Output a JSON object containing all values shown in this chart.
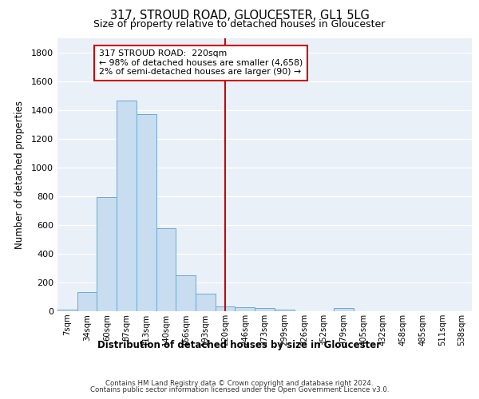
{
  "title": "317, STROUD ROAD, GLOUCESTER, GL1 5LG",
  "subtitle": "Size of property relative to detached houses in Gloucester",
  "xlabel_bottom": "Distribution of detached houses by size in Gloucester",
  "ylabel": "Number of detached properties",
  "footer_line1": "Contains HM Land Registry data © Crown copyright and database right 2024.",
  "footer_line2": "Contains public sector information licensed under the Open Government Licence v3.0.",
  "annotation_title": "317 STROUD ROAD:  220sqm",
  "annotation_line2": "← 98% of detached houses are smaller (4,658)",
  "annotation_line3": "2% of semi-detached houses are larger (90) →",
  "bar_categories": [
    "7sqm",
    "34sqm",
    "60sqm",
    "87sqm",
    "113sqm",
    "140sqm",
    "166sqm",
    "193sqm",
    "220sqm",
    "246sqm",
    "273sqm",
    "299sqm",
    "326sqm",
    "352sqm",
    "379sqm",
    "405sqm",
    "432sqm",
    "458sqm",
    "485sqm",
    "511sqm",
    "538sqm"
  ],
  "bar_values": [
    10,
    135,
    795,
    1465,
    1370,
    575,
    248,
    120,
    35,
    25,
    22,
    13,
    0,
    0,
    20,
    0,
    0,
    0,
    0,
    0,
    0
  ],
  "bar_color": "#c9ddf0",
  "bar_edge_color": "#6aaad4",
  "marker_line_color": "#cc0000",
  "annotation_box_edge_color": "#cc0000",
  "background_color": "#eaf0f8",
  "grid_color": "#ffffff",
  "ylim": [
    0,
    1900
  ],
  "yticks": [
    0,
    200,
    400,
    600,
    800,
    1000,
    1200,
    1400,
    1600,
    1800
  ]
}
